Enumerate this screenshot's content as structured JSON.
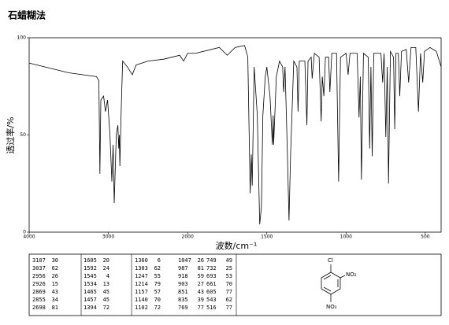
{
  "chart_data": {
    "type": "line",
    "title": "石蜡糊法",
    "xlabel": "波数/cm⁻¹",
    "ylabel": "透过率/%",
    "xlim": [
      4000,
      400
    ],
    "xticks": [
      4000,
      3000,
      2000,
      1500,
      1000,
      500
    ],
    "ylim": [
      0,
      100
    ],
    "yticks": [
      0,
      50,
      100
    ],
    "grid": false,
    "color": "#000000",
    "x": [
      4000,
      3500,
      3150,
      3120,
      3107,
      3095,
      3060,
      3037,
      3010,
      2980,
      2956,
      2940,
      2926,
      2900,
      2880,
      2869,
      2862,
      2855,
      2840,
      2820,
      2760,
      2698,
      2650,
      2500,
      2300,
      2100,
      2050,
      2000,
      1950,
      1800,
      1750,
      1700,
      1640,
      1620,
      1605,
      1598,
      1592,
      1580,
      1560,
      1545,
      1540,
      1534,
      1525,
      1510,
      1500,
      1480,
      1465,
      1460,
      1457,
      1440,
      1420,
      1400,
      1394,
      1385,
      1370,
      1360,
      1350,
      1330,
      1310,
      1303,
      1295,
      1260,
      1247,
      1240,
      1220,
      1214,
      1200,
      1170,
      1157,
      1150,
      1140,
      1130,
      1110,
      1102,
      1090,
      1060,
      1047,
      1035,
      1000,
      987,
      975,
      930,
      918,
      910,
      903,
      890,
      860,
      851,
      843,
      835,
      825,
      780,
      769,
      760,
      749,
      740,
      732,
      720,
      700,
      693,
      685,
      670,
      661,
      650,
      620,
      605,
      590,
      560,
      543,
      530,
      516,
      505,
      470,
      430,
      400
    ],
    "values": [
      87,
      82,
      80,
      78,
      30,
      68,
      70,
      62,
      68,
      50,
      26,
      45,
      15,
      50,
      55,
      43,
      50,
      34,
      60,
      88,
      85,
      81,
      86,
      88,
      89,
      91,
      88,
      92,
      92,
      95,
      91,
      95,
      96,
      90,
      20,
      40,
      24,
      85,
      60,
      4,
      8,
      13,
      60,
      80,
      85,
      70,
      45,
      60,
      45,
      80,
      88,
      85,
      72,
      85,
      40,
      6,
      40,
      88,
      85,
      62,
      88,
      88,
      55,
      88,
      90,
      79,
      92,
      90,
      57,
      80,
      70,
      90,
      90,
      72,
      92,
      92,
      26,
      90,
      92,
      81,
      92,
      92,
      59,
      80,
      27,
      92,
      90,
      43,
      85,
      39,
      92,
      92,
      77,
      92,
      49,
      85,
      25,
      93,
      90,
      53,
      92,
      92,
      70,
      93,
      94,
      77,
      95,
      95,
      62,
      92,
      77,
      93,
      95,
      93,
      85
    ]
  },
  "peak_table": {
    "columns": [
      [
        [
          "3107",
          "30"
        ],
        [
          "3037",
          "62"
        ],
        [
          "2956",
          "26"
        ],
        [
          "2926",
          "15"
        ],
        [
          "2869",
          "43"
        ],
        [
          "2855",
          "34"
        ],
        [
          "2698",
          "81"
        ]
      ],
      [
        [
          "1605",
          "20"
        ],
        [
          "1592",
          "24"
        ],
        [
          "1545",
          "4"
        ],
        [
          "1534",
          "13"
        ],
        [
          "1465",
          "45"
        ],
        [
          "1457",
          "45"
        ],
        [
          "1394",
          "72"
        ]
      ],
      [
        [
          "1360",
          "6"
        ],
        [
          "1303",
          "62"
        ],
        [
          "1247",
          "55"
        ],
        [
          "1214",
          "79"
        ],
        [
          "1157",
          "57"
        ],
        [
          "1140",
          "70"
        ],
        [
          "1102",
          "72"
        ]
      ],
      [
        [
          "1047",
          "26"
        ],
        [
          "987",
          "81"
        ],
        [
          "918",
          "59"
        ],
        [
          "903",
          "27"
        ],
        [
          "851",
          "43"
        ],
        [
          "835",
          "39"
        ],
        [
          "769",
          "77"
        ]
      ],
      [
        [
          "749",
          "49"
        ],
        [
          "732",
          "25"
        ],
        [
          "693",
          "53"
        ],
        [
          "661",
          "70"
        ],
        [
          "605",
          "77"
        ],
        [
          "543",
          "62"
        ],
        [
          "516",
          "77"
        ]
      ]
    ]
  },
  "structure": {
    "labels": [
      "Cl",
      "NO₂",
      "NO₂"
    ]
  }
}
